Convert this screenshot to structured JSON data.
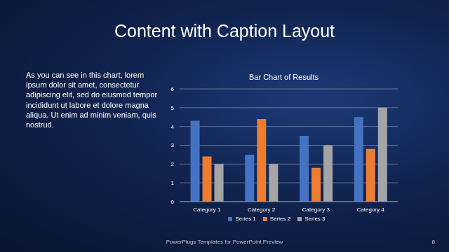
{
  "slide": {
    "title": "Content with Caption Layout",
    "caption": "As you can see in this chart, lorem ipsum dolor sit amet, consectetur adipiscing elit, sed do eiusmod tempor incididunt ut labore et dolore magna aliqua. Ut enim ad minim veniam, quis nostrud.",
    "footer": "PowerPlugs Templates for PowerPoint Preview",
    "page": 8
  },
  "chart_data": {
    "type": "bar",
    "title": "Bar Chart of Results",
    "categories": [
      "Category 1",
      "Category 2",
      "Category 3",
      "Category 4"
    ],
    "series": [
      {
        "name": "Series 1",
        "color": "#4472c4",
        "values": [
          4.3,
          2.5,
          3.5,
          4.5
        ]
      },
      {
        "name": "Series 2",
        "color": "#ed7d31",
        "values": [
          2.4,
          4.4,
          1.8,
          2.8
        ]
      },
      {
        "name": "Series 3",
        "color": "#a5a5a5",
        "values": [
          2,
          2,
          3,
          5
        ]
      }
    ],
    "ylim": [
      0,
      6
    ],
    "yticks": [
      0,
      1,
      2,
      3,
      4,
      5,
      6
    ],
    "grid": true,
    "legend": "bottom"
  }
}
